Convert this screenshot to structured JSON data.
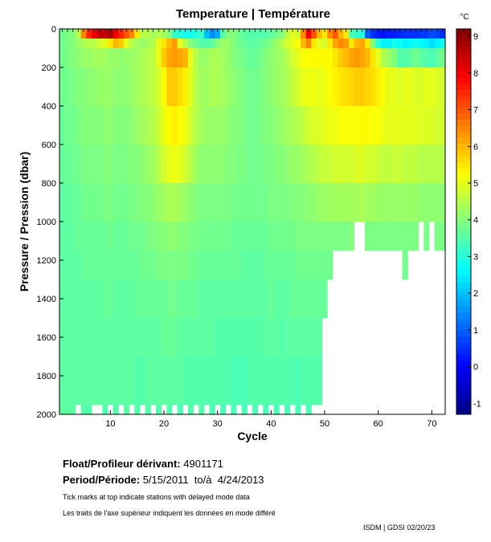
{
  "chart_data": {
    "type": "heatmap",
    "title": "Temperature | Température",
    "xlabel": "Cycle",
    "ylabel": "Pressure / Pression (dbar)",
    "colorbar_label": "°C",
    "colormap": "jet",
    "clim": [
      -1.3,
      9.2
    ],
    "colorbar_ticks": [
      -1,
      0,
      1,
      2,
      3,
      4,
      5,
      6,
      7,
      8,
      9
    ],
    "xlim": [
      0.5,
      72.5
    ],
    "ylim": [
      0,
      2000
    ],
    "y_reversed": true,
    "xticks": [
      10,
      20,
      30,
      40,
      50,
      60,
      70
    ],
    "yticks": [
      0,
      200,
      400,
      600,
      800,
      1000,
      1200,
      1400,
      1600,
      1800,
      2000
    ],
    "pressure_bins": [
      [
        0,
        50
      ],
      [
        50,
        100
      ],
      [
        100,
        200
      ],
      [
        200,
        400
      ],
      [
        400,
        600
      ],
      [
        600,
        800
      ],
      [
        800,
        1000
      ],
      [
        1000,
        1150
      ],
      [
        1150,
        1300
      ],
      [
        1300,
        1500
      ],
      [
        1500,
        1700
      ],
      [
        1700,
        1950
      ],
      [
        1950,
        2000
      ]
    ],
    "temperature_rows": [
      [
        3.8,
        3.9,
        4.0,
        4.5,
        6.5,
        7.5,
        8.0,
        8.5,
        8.5,
        8.8,
        8.0,
        7.5,
        7.0,
        6.5,
        5.5,
        4.5,
        4.5,
        4.3,
        4.5,
        4.3,
        4.0,
        3.2,
        3.0,
        2.8,
        2.8,
        3.0,
        3.2,
        2.0,
        1.5,
        1.8,
        3.5,
        4.0,
        4.0,
        3.8,
        3.6,
        3.5,
        3.5,
        3.5,
        3.5,
        3.6,
        3.8,
        4.0,
        4.5,
        5.0,
        4.8,
        6.5,
        8.0,
        7.0,
        6.0,
        5.5,
        6.5,
        7.0,
        6.0,
        5.5,
        3.5,
        3.2,
        3.0,
        1.0,
        0.5,
        0.3,
        0.2,
        0.3,
        0.3,
        0.4,
        0.5,
        0.5,
        0.5,
        0.6,
        0.6,
        0.8,
        0.7,
        0.5
      ],
      [
        3.8,
        3.9,
        4.0,
        4.2,
        4.4,
        4.5,
        4.5,
        4.8,
        5.0,
        5.5,
        6.0,
        5.8,
        5.0,
        4.5,
        4.3,
        4.2,
        4.3,
        4.5,
        5.0,
        5.5,
        6.0,
        6.3,
        5.0,
        4.5,
        4.0,
        3.8,
        3.5,
        3.5,
        3.6,
        4.0,
        4.2,
        4.2,
        4.0,
        3.8,
        3.7,
        3.6,
        3.6,
        3.7,
        3.8,
        4.0,
        4.2,
        4.5,
        4.8,
        5.0,
        5.2,
        6.0,
        6.5,
        5.5,
        5.0,
        4.8,
        5.5,
        6.2,
        6.5,
        6.3,
        5.5,
        6.0,
        6.2,
        5.5,
        4.0,
        3.0,
        2.5,
        2.5,
        2.8,
        2.7,
        2.5,
        2.6,
        2.8,
        2.6,
        2.5,
        2.3,
        2.5,
        2.8
      ],
      [
        3.8,
        3.9,
        4.0,
        4.1,
        4.2,
        4.2,
        4.3,
        4.3,
        4.3,
        4.2,
        4.2,
        4.1,
        4.2,
        4.2,
        4.3,
        4.4,
        4.5,
        4.6,
        5.0,
        5.8,
        6.2,
        6.3,
        6.2,
        6.0,
        5.0,
        4.5,
        4.2,
        4.2,
        4.4,
        4.4,
        4.3,
        4.2,
        4.0,
        3.9,
        3.8,
        3.7,
        3.7,
        3.8,
        4.0,
        4.1,
        4.2,
        4.3,
        4.5,
        4.8,
        5.0,
        5.2,
        5.3,
        5.3,
        5.3,
        5.3,
        5.3,
        5.5,
        5.8,
        6.0,
        6.2,
        6.3,
        6.2,
        6.0,
        5.5,
        5.0,
        4.5,
        4.2,
        4.0,
        3.5,
        3.5,
        3.6,
        3.8,
        3.6,
        3.5,
        3.4,
        3.6,
        3.8
      ],
      [
        3.8,
        3.8,
        3.9,
        4.0,
        4.0,
        4.1,
        4.1,
        4.2,
        4.2,
        4.2,
        4.1,
        4.1,
        4.1,
        4.2,
        4.3,
        4.4,
        4.5,
        4.6,
        4.8,
        5.3,
        5.8,
        5.8,
        5.6,
        5.4,
        5.0,
        4.5,
        4.3,
        4.3,
        4.4,
        4.4,
        4.3,
        4.2,
        4.1,
        4.0,
        3.9,
        3.8,
        3.8,
        3.9,
        4.0,
        4.1,
        4.2,
        4.3,
        4.4,
        4.6,
        4.8,
        5.0,
        5.1,
        5.1,
        5.0,
        5.1,
        5.3,
        5.4,
        5.5,
        5.6,
        5.7,
        5.8,
        5.8,
        5.7,
        5.6,
        5.4,
        5.2,
        5.0,
        5.0,
        4.9,
        5.0,
        5.0,
        4.9,
        4.9,
        5.0,
        5.0,
        4.9,
        4.8
      ],
      [
        3.7,
        3.8,
        3.8,
        3.9,
        4.0,
        4.0,
        4.0,
        4.0,
        4.1,
        4.1,
        4.0,
        4.0,
        4.0,
        4.1,
        4.2,
        4.3,
        4.4,
        4.5,
        4.7,
        5.1,
        5.3,
        5.4,
        5.3,
        5.1,
        4.8,
        4.5,
        4.3,
        4.2,
        4.2,
        4.2,
        4.2,
        4.1,
        4.0,
        4.0,
        3.9,
        3.8,
        3.8,
        3.9,
        4.0,
        4.0,
        4.1,
        4.2,
        4.3,
        4.4,
        4.5,
        4.6,
        4.8,
        4.9,
        4.9,
        5.0,
        5.1,
        5.1,
        5.2,
        5.2,
        5.2,
        5.2,
        5.3,
        5.3,
        5.2,
        5.2,
        5.1,
        5.0,
        5.0,
        5.0,
        5.0,
        5.0,
        5.0,
        4.9,
        4.9,
        4.9,
        4.8,
        4.8
      ],
      [
        3.7,
        3.7,
        3.8,
        3.8,
        3.9,
        3.9,
        3.9,
        3.9,
        4.0,
        4.0,
        3.9,
        3.9,
        3.9,
        4.0,
        4.0,
        4.1,
        4.2,
        4.3,
        4.5,
        4.8,
        5.0,
        5.1,
        5.0,
        4.8,
        4.5,
        4.3,
        4.1,
        4.1,
        4.1,
        4.1,
        4.1,
        4.0,
        4.0,
        3.9,
        3.9,
        3.8,
        3.8,
        3.8,
        3.9,
        3.9,
        4.0,
        4.0,
        4.1,
        4.2,
        4.2,
        4.3,
        4.4,
        4.5,
        4.6,
        4.7,
        4.7,
        4.8,
        4.8,
        4.8,
        4.8,
        4.9,
        4.9,
        4.8,
        4.8,
        4.7,
        4.6,
        4.6,
        4.7,
        4.7,
        4.6,
        4.6,
        4.6,
        4.5,
        4.5,
        4.5,
        4.5,
        4.5
      ],
      [
        3.6,
        3.6,
        3.7,
        3.7,
        3.8,
        3.8,
        3.8,
        3.8,
        3.9,
        3.9,
        3.8,
        3.8,
        3.8,
        3.9,
        3.9,
        4.0,
        4.0,
        4.1,
        4.2,
        4.3,
        4.4,
        4.4,
        4.3,
        4.2,
        4.1,
        4.0,
        3.9,
        3.9,
        3.9,
        3.9,
        3.9,
        3.9,
        3.8,
        3.8,
        3.8,
        3.8,
        3.8,
        3.8,
        3.8,
        3.9,
        3.9,
        3.9,
        3.9,
        4.0,
        4.0,
        4.0,
        4.1,
        4.1,
        4.2,
        4.2,
        4.3,
        4.3,
        4.3,
        4.3,
        4.3,
        4.3,
        4.4,
        4.3,
        4.3,
        4.2,
        4.2,
        4.2,
        4.2,
        4.2,
        4.2,
        4.2,
        4.2,
        4.1,
        4.1,
        4.1,
        4.1,
        4.1
      ],
      [
        3.6,
        3.6,
        3.6,
        3.7,
        3.7,
        3.7,
        3.7,
        3.7,
        3.7,
        3.8,
        3.7,
        3.7,
        3.7,
        3.8,
        3.8,
        3.8,
        3.9,
        3.9,
        4.0,
        4.0,
        4.1,
        4.1,
        4.0,
        4.0,
        3.9,
        3.9,
        3.8,
        3.8,
        3.8,
        3.8,
        3.8,
        3.8,
        3.7,
        3.7,
        3.7,
        3.7,
        3.7,
        3.7,
        3.7,
        3.8,
        3.8,
        3.8,
        3.8,
        3.8,
        3.9,
        3.9,
        3.9,
        3.9,
        3.9,
        3.9,
        3.9,
        3.9,
        3.9,
        3.9,
        4.0,
        null,
        null,
        3.9,
        3.9,
        3.9,
        3.9,
        3.9,
        3.9,
        3.9,
        3.9,
        3.9,
        3.9,
        null,
        3.9,
        null,
        3.9,
        3.9
      ],
      [
        3.6,
        3.6,
        3.6,
        3.6,
        3.7,
        3.7,
        3.7,
        3.7,
        3.7,
        3.7,
        3.7,
        3.7,
        3.7,
        3.7,
        3.7,
        3.8,
        3.8,
        3.8,
        3.9,
        3.9,
        3.9,
        3.9,
        3.9,
        3.9,
        3.8,
        3.8,
        3.7,
        3.7,
        3.7,
        3.7,
        3.7,
        3.7,
        3.7,
        3.7,
        3.6,
        3.6,
        3.6,
        3.6,
        3.7,
        3.7,
        3.7,
        3.7,
        3.7,
        3.7,
        3.8,
        3.8,
        3.8,
        3.8,
        3.8,
        3.8,
        3.8,
        null,
        null,
        null,
        null,
        null,
        null,
        null,
        null,
        null,
        null,
        null,
        null,
        null,
        3.8,
        null,
        null,
        null,
        null,
        null,
        null,
        null
      ],
      [
        3.6,
        3.6,
        3.6,
        3.6,
        3.6,
        3.6,
        3.6,
        3.6,
        3.7,
        3.7,
        3.6,
        3.6,
        3.6,
        3.6,
        3.7,
        3.7,
        3.7,
        3.7,
        3.7,
        3.7,
        3.8,
        3.8,
        3.7,
        3.7,
        3.7,
        3.7,
        3.6,
        3.6,
        3.6,
        3.6,
        3.6,
        3.6,
        3.6,
        3.6,
        3.6,
        3.6,
        3.6,
        3.6,
        3.6,
        3.7,
        3.6,
        3.6,
        3.6,
        3.7,
        3.7,
        3.7,
        3.7,
        3.7,
        3.7,
        3.7,
        null,
        null,
        null,
        null,
        null,
        null,
        null,
        null,
        null,
        null,
        null,
        null,
        null,
        null,
        null,
        null,
        null,
        null,
        null,
        null,
        null,
        null
      ],
      [
        3.6,
        3.6,
        3.6,
        3.6,
        3.6,
        3.6,
        3.6,
        3.6,
        3.6,
        3.6,
        3.6,
        3.6,
        3.6,
        3.6,
        3.6,
        3.6,
        3.6,
        3.6,
        3.6,
        3.7,
        3.7,
        3.7,
        3.6,
        3.6,
        3.6,
        3.6,
        3.6,
        3.6,
        3.6,
        3.5,
        3.5,
        3.5,
        3.5,
        3.5,
        3.5,
        3.5,
        3.5,
        3.5,
        3.6,
        3.6,
        3.6,
        3.5,
        3.6,
        3.6,
        3.6,
        3.6,
        3.6,
        3.6,
        3.6,
        null,
        null,
        null,
        null,
        null,
        null,
        null,
        null,
        null,
        null,
        null,
        null,
        null,
        null,
        null,
        null,
        null,
        null,
        null,
        null,
        null,
        null,
        null
      ],
      [
        3.6,
        3.6,
        3.6,
        3.6,
        3.6,
        3.6,
        3.6,
        3.6,
        3.6,
        3.6,
        3.6,
        3.6,
        3.6,
        3.6,
        3.5,
        3.5,
        3.6,
        3.6,
        3.6,
        3.6,
        3.6,
        3.6,
        3.6,
        3.5,
        3.5,
        3.5,
        3.5,
        3.5,
        3.5,
        3.5,
        3.5,
        3.5,
        3.4,
        3.4,
        3.4,
        3.5,
        3.5,
        3.5,
        3.5,
        3.5,
        3.5,
        3.5,
        3.5,
        3.5,
        3.4,
        3.5,
        3.5,
        3.5,
        3.5,
        null,
        null,
        null,
        null,
        null,
        null,
        null,
        null,
        null,
        null,
        null,
        null,
        null,
        null,
        null,
        null,
        null,
        null,
        null,
        null,
        null,
        null,
        null
      ],
      [
        3.6,
        3.6,
        3.6,
        null,
        3.5,
        3.5,
        null,
        null,
        3.5,
        null,
        3.5,
        null,
        3.6,
        null,
        3.5,
        null,
        3.5,
        null,
        3.5,
        null,
        3.5,
        null,
        3.4,
        null,
        3.5,
        null,
        3.5,
        null,
        3.4,
        null,
        3.4,
        null,
        3.4,
        null,
        3.4,
        null,
        3.4,
        null,
        3.4,
        null,
        3.4,
        null,
        3.4,
        null,
        3.4,
        null,
        3.4,
        null,
        null,
        null,
        null,
        null,
        null,
        null,
        null,
        null,
        null,
        null,
        null,
        null,
        null,
        null,
        null,
        null,
        null,
        null,
        null,
        null,
        null,
        null,
        null,
        null
      ]
    ]
  },
  "footer": {
    "float_label": "Float/Profileur dérivant:",
    "float_id": "4901171",
    "period_label": "Period/Période:",
    "period_value": "5/15/2011  to/à  4/24/2013",
    "note_en": "Tick marks at top indicate stations with delayed mode data",
    "note_fr": "Les traits de l'axe supérieur indiquent les données en mode différé",
    "credit": "ISDM | GDSI  02/20/23"
  }
}
